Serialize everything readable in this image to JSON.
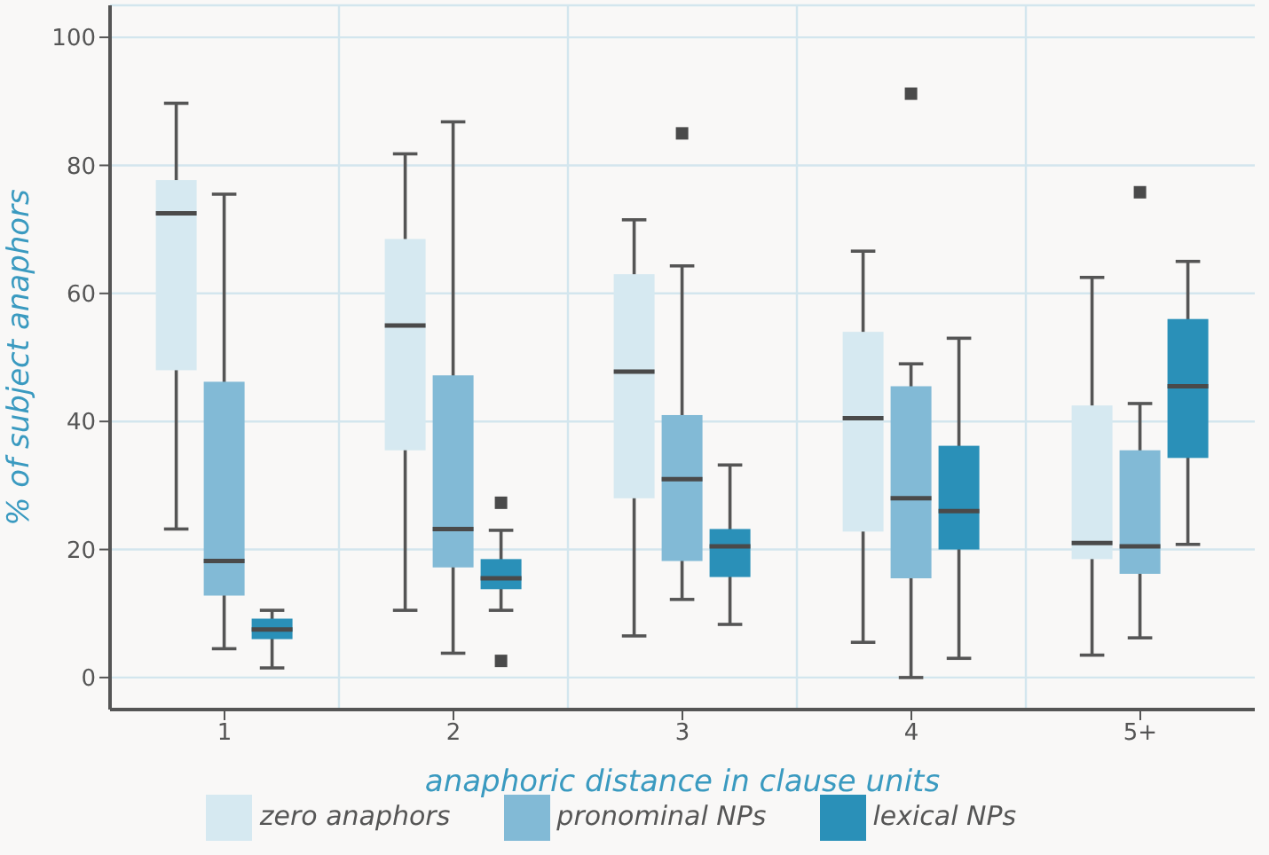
{
  "chart_data": {
    "type": "box",
    "xlabel": "anaphoric distance in clause units",
    "ylabel": "% of subject anaphors",
    "categories": [
      "1",
      "2",
      "3",
      "4",
      "5+"
    ],
    "ylim": [
      -5,
      105
    ],
    "yticks": [
      0,
      20,
      40,
      60,
      80,
      100
    ],
    "grid": true,
    "legend": "bottom",
    "series": [
      {
        "name": "zero anaphors",
        "color": "#d6e9f1",
        "boxes": [
          {
            "low": 23.2,
            "q1": 48,
            "median": 72.5,
            "q3": 77.7,
            "high": 89.7
          },
          {
            "low": 10.5,
            "q1": 35.5,
            "median": 55,
            "q3": 68.5,
            "high": 81.8
          },
          {
            "low": 6.5,
            "q1": 28,
            "median": 47.8,
            "q3": 63,
            "high": 71.5
          },
          {
            "low": 5.5,
            "q1": 22.8,
            "median": 40.5,
            "q3": 54,
            "high": 66.6
          },
          {
            "low": 3.5,
            "q1": 18.5,
            "median": 21,
            "q3": 42.5,
            "high": 62.5
          }
        ]
      },
      {
        "name": "pronominal NPs",
        "color": "#82bad6",
        "boxes": [
          {
            "low": 4.5,
            "q1": 12.8,
            "median": 18.2,
            "q3": 46.2,
            "high": 75.5
          },
          {
            "low": 3.8,
            "q1": 17.2,
            "median": 23.2,
            "q3": 47.2,
            "high": 86.8
          },
          {
            "low": 12.2,
            "q1": 18.2,
            "median": 31,
            "q3": 41,
            "high": 64.3,
            "outliers": [
              85
            ]
          },
          {
            "low": 0,
            "q1": 15.5,
            "median": 28,
            "q3": 45.5,
            "high": 49,
            "outliers": [
              91.2
            ]
          },
          {
            "low": 6.2,
            "q1": 16.2,
            "median": 20.5,
            "q3": 35.5,
            "high": 42.8,
            "outliers": [
              75.8
            ]
          }
        ]
      },
      {
        "name": "lexical NPs",
        "color": "#2a90b8",
        "boxes": [
          {
            "low": 1.5,
            "q1": 6,
            "median": 7.5,
            "q3": 9.2,
            "high": 10.5
          },
          {
            "low": 10.5,
            "q1": 13.8,
            "median": 15.5,
            "q3": 18.5,
            "high": 23,
            "outliers": [
              27.3,
              2.6
            ]
          },
          {
            "low": 8.3,
            "q1": 15.7,
            "median": 20.5,
            "q3": 23.2,
            "high": 33.2
          },
          {
            "low": 3,
            "q1": 20,
            "median": 26,
            "q3": 36.2,
            "high": 53
          },
          {
            "low": 20.8,
            "q1": 34.3,
            "median": 45.5,
            "q3": 56,
            "high": 65
          }
        ]
      }
    ]
  }
}
